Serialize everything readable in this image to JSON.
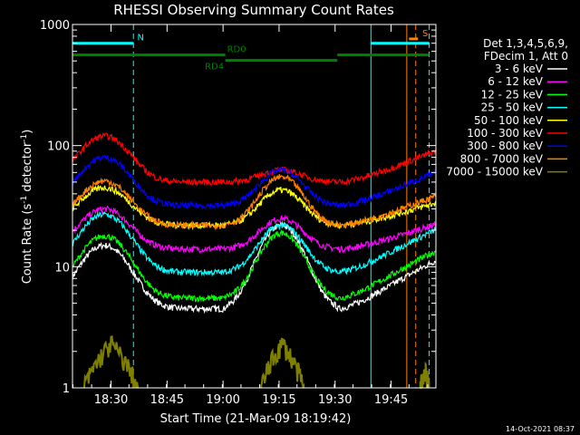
{
  "chart_data": {
    "type": "line",
    "title": "RHESSI Observing Summary Count Rates",
    "xlabel": "Start Time (21-Mar-09 18:19:42)",
    "ylabel_main": "Count Rate (s",
    "ylabel_sup1": "-1",
    "ylabel_mid": " detector",
    "ylabel_sup2": "-1",
    "ylabel_end": ")",
    "y_scale": "log",
    "ylim": [
      1,
      1000
    ],
    "xlim": [
      18.328,
      19.95
    ],
    "x_ticks": [
      {
        "v": 18.5,
        "label": "18:30"
      },
      {
        "v": 18.75,
        "label": "18:45"
      },
      {
        "v": 19.0,
        "label": "19:00"
      },
      {
        "v": 19.25,
        "label": "19:15"
      },
      {
        "v": 19.5,
        "label": "19:30"
      },
      {
        "v": 19.75,
        "label": "19:45"
      }
    ],
    "y_ticks": [
      {
        "v": 1,
        "label": "1"
      },
      {
        "v": 10,
        "label": "10"
      },
      {
        "v": 100,
        "label": "100"
      },
      {
        "v": 1000,
        "label": "1000"
      }
    ],
    "legend_header": [
      "Det 1,3,4,5,6,9,",
      "FDecim 1, Att 0"
    ],
    "series": [
      {
        "name": "3 - 6 keV",
        "color": "#ffffff",
        "day": 15,
        "night": 4.5,
        "peak": 22
      },
      {
        "name": "6 - 12 keV",
        "color": "#ff00ff",
        "day": 30,
        "night": 14,
        "peak": 25
      },
      {
        "name": "12 - 25 keV",
        "color": "#00ff00",
        "day": 18,
        "night": 5.5,
        "peak": 19
      },
      {
        "name": "25 - 50 keV",
        "color": "#00ffff",
        "day": 27,
        "night": 9,
        "peak": 22
      },
      {
        "name": "50 - 100 keV",
        "color": "#ffff00",
        "day": 45,
        "night": 22,
        "peak": 43
      },
      {
        "name": "100 - 300 keV",
        "color": "#ff0000",
        "day": 120,
        "night": 50,
        "peak": 63
      },
      {
        "name": "300 - 800 keV",
        "color": "#0000ff",
        "day": 80,
        "night": 32,
        "peak": 63
      },
      {
        "name": "800 - 7000 keV",
        "color": "#ff8000",
        "day": 51,
        "night": 22,
        "peak": 55
      },
      {
        "name": "7000 - 15000 keV",
        "color": "#808000",
        "day": 1,
        "night": 1,
        "peak": 1
      }
    ],
    "olive_bursts": [
      {
        "x0": 18.38,
        "x1": 18.62,
        "peak": 2.3
      },
      {
        "x0": 19.17,
        "x1": 19.36,
        "peak": 2.3
      },
      {
        "x0": 19.88,
        "x1": 19.92,
        "peak": 1.4
      }
    ],
    "flags": [
      {
        "label": "N",
        "color": "#00ffff",
        "y": 700,
        "segments": [
          [
            18.33,
            18.6
          ],
          [
            19.66,
            19.92
          ]
        ]
      },
      {
        "label": "RD0",
        "color": "#008000",
        "y": 560,
        "segments": [
          [
            18.33,
            19.01
          ],
          [
            19.51,
            19.92
          ]
        ]
      },
      {
        "label": "RD4",
        "color": "#008000",
        "y": 505,
        "segments": [
          [
            19.01,
            19.51
          ]
        ]
      },
      {
        "label": "S",
        "color": "#ff8000",
        "y": 760,
        "segments": [
          [
            19.83,
            19.87
          ]
        ]
      }
    ],
    "vlines": [
      {
        "x": 18.6,
        "color": "#00ffff",
        "dash": true
      },
      {
        "x": 19.66,
        "color": "#00ffff",
        "dash": false
      },
      {
        "x": 19.82,
        "color": "#ff8000",
        "dash": false
      },
      {
        "x": 19.86,
        "color": "#ff8000",
        "dash": true
      },
      {
        "x": 19.92,
        "color": "#00ffff",
        "dash": true
      }
    ],
    "timestamp": "14-Oct-2021 08:37"
  }
}
